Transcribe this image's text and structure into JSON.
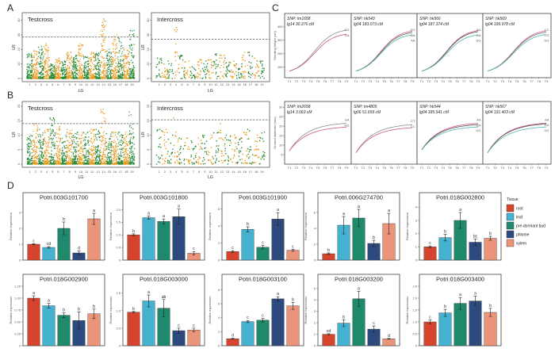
{
  "panel_letters": [
    "A",
    "B",
    "C",
    "D"
  ],
  "chart_data": {
    "manhattan": {
      "type": "scatter",
      "xlabel": "LG",
      "ylabel": "LR",
      "lg_labels": [
        "1",
        "2",
        "3",
        "4",
        "5",
        "6",
        "7",
        "8",
        "9",
        "10",
        "11",
        "12",
        "13",
        "14",
        "15",
        "16",
        "17",
        "18",
        "19"
      ],
      "colors": {
        "odd": "#2a8a3a",
        "even": "#e99a1b",
        "threshold": "#555555"
      },
      "panels": [
        {
          "row": "A",
          "title": "Testcross",
          "ylim": [
            0,
            42
          ],
          "yticks": [
            "0",
            "10",
            "20",
            "30",
            "40"
          ],
          "ytick_values": [
            0,
            10,
            20,
            30,
            40
          ],
          "threshold": 28.5,
          "lg_max": [
            17,
            19,
            22,
            24,
            10,
            14,
            12,
            18,
            16,
            24,
            15,
            18,
            18,
            41,
            20,
            30,
            28,
            20,
            33
          ]
        },
        {
          "row": "A",
          "title": "Intercross",
          "ylim": [
            0,
            42
          ],
          "yticks": [
            "0",
            "10",
            "20",
            "30",
            "40"
          ],
          "ytick_values": [
            0,
            10,
            20,
            30,
            40
          ],
          "threshold": 27,
          "lg_max": [
            14,
            10,
            12,
            35,
            16,
            12,
            8,
            13,
            12,
            13,
            17,
            16,
            14,
            12,
            10,
            18,
            18,
            14,
            12
          ]
        },
        {
          "row": "B",
          "title": "Testcross",
          "ylim": [
            0,
            20
          ],
          "yticks": [
            "0",
            "5",
            "10",
            "15",
            "20"
          ],
          "ytick_values": [
            0,
            5,
            10,
            15,
            20
          ],
          "threshold": 14,
          "lg_max": [
            10,
            14,
            12,
            12,
            16,
            13,
            10,
            12,
            11,
            11,
            11,
            12,
            12,
            19,
            11,
            11,
            11,
            11,
            18
          ]
        },
        {
          "row": "B",
          "title": "Intercross",
          "ylim": [
            0,
            20
          ],
          "yticks": [
            "0",
            "5",
            "10",
            "15",
            "20"
          ],
          "ytick_values": [
            0,
            5,
            10,
            15,
            20
          ],
          "threshold": 15.3,
          "lg_max": [
            12,
            12,
            10,
            16,
            9,
            9,
            8,
            9,
            10,
            10,
            11,
            14,
            10,
            10,
            9,
            11,
            12,
            10,
            11
          ]
        }
      ]
    },
    "growth_curves": {
      "type": "line",
      "x_labels": [
        "T1",
        "T2",
        "T3",
        "T4",
        "T5",
        "T6",
        "T7",
        "T8",
        "T9"
      ],
      "rows": [
        {
          "ylabel": "Seedling height (cm)",
          "ylim": [
            20,
            500
          ],
          "yticks": [
            100,
            200,
            300,
            400
          ],
          "shape": "sigmoid",
          "start": 70,
          "panels": [
            {
              "snp": "SNP: lm1658",
              "position": "lg14 30.376 cM",
              "genotypes": [
                {
                  "label": "GG",
                  "color": "#8c8c8c",
                  "end": 375
                },
                {
                  "label": "GA",
                  "color": "#c9587f",
                  "end": 345
                }
              ]
            },
            {
              "snp": "SNP: hk543",
              "position": "lg04 183.073 cM",
              "genotypes": [
                {
                  "label": "GG",
                  "color": "#c9587f",
                  "end": 368
                },
                {
                  "label": "GA",
                  "color": "#666666",
                  "end": 357
                },
                {
                  "label": "AA",
                  "color": "#4fb3b0",
                  "end": 340
                }
              ]
            },
            {
              "snp": "SNP: hk566",
              "position": "lg04 187.374 cM",
              "genotypes": [
                {
                  "label": "AA",
                  "color": "#c9587f",
                  "end": 372
                },
                {
                  "label": "GA",
                  "color": "#555555",
                  "end": 364
                },
                {
                  "label": "GG",
                  "color": "#4fb3b0",
                  "end": 340
                }
              ]
            },
            {
              "snp": "SNP: hk569",
              "position": "lg04 199.978 cM",
              "genotypes": [
                {
                  "label": "CC",
                  "color": "#c9587f",
                  "end": 370
                },
                {
                  "label": "CG",
                  "color": "#777777",
                  "end": 360
                },
                {
                  "label": "GG",
                  "color": "#4fb3b0",
                  "end": 343
                }
              ]
            }
          ]
        },
        {
          "ylabel": "Ground diameter (mm)",
          "ylim": [
            0,
            33
          ],
          "yticks": [
            5,
            10,
            15,
            20,
            25,
            30
          ],
          "shape": "saturating",
          "panels": [
            {
              "snp": "SNP: lm2658",
              "position": "lg14 3.063 cM",
              "start": 7,
              "genotypes": [
                {
                  "label": "GA",
                  "color": "#8c8c8c",
                  "end": 21.5
                },
                {
                  "label": "GG",
                  "color": "#c9587f",
                  "end": 19.5
                }
              ]
            },
            {
              "snp": "SNP: lm4805",
              "position": "lg06 51.659 cM",
              "start": 6,
              "genotypes": [
                {
                  "label": "CT",
                  "color": "#8c8c8c",
                  "end": 20.8
                },
                {
                  "label": "CC",
                  "color": "#c9587f",
                  "end": 19.2
                }
              ]
            },
            {
              "snp": "SNP: hk544",
              "position": "lg04 185.541 cM",
              "start": 7.5,
              "genotypes": [
                {
                  "label": "AA",
                  "color": "#c9587f",
                  "end": 21.5
                },
                {
                  "label": "GA",
                  "color": "#555555",
                  "end": 20.8
                },
                {
                  "label": "GG",
                  "color": "#4fb3b0",
                  "end": 19.6
                }
              ]
            },
            {
              "snp": "SNP: hk567",
              "position": "lg04 191.403 cM",
              "start": 6,
              "genotypes": [
                {
                  "label": "AA",
                  "color": "#c9587f",
                  "end": 21.6
                },
                {
                  "label": "GA",
                  "color": "#555555",
                  "end": 21.2
                },
                {
                  "label": "GG",
                  "color": "#4fb3b0",
                  "end": 19.6
                }
              ]
            }
          ]
        }
      ]
    },
    "expression": {
      "type": "bar",
      "ylabel": "Relative expression",
      "legend_title": "Tissue",
      "tissues": [
        {
          "name": "root",
          "color": "#d7442e"
        },
        {
          "name": "leaf",
          "color": "#45b2cf"
        },
        {
          "name": "pre-dormant bud",
          "color": "#1f8a6b"
        },
        {
          "name": "phlome",
          "color": "#2d4a7f"
        },
        {
          "name": "xylem",
          "color": "#eb9479"
        }
      ],
      "genes": [
        {
          "title": "Potri.003G101700",
          "ylim": [
            0,
            3.5
          ],
          "yticks": [
            "0",
            "1",
            "2",
            "3"
          ],
          "ytick_values": [
            0,
            1,
            2,
            3
          ],
          "values": [
            1.0,
            0.8,
            2.0,
            0.45,
            2.6
          ],
          "errors": [
            0.03,
            0.05,
            0.4,
            0.12,
            0.35
          ],
          "letters": [
            "c",
            "cd",
            "b",
            "d",
            "a"
          ]
        },
        {
          "title": "Potri.003G101800",
          "ylim": [
            0,
            2.2
          ],
          "yticks": [
            "0",
            "0.5",
            "1.0",
            "1.5",
            "2.0"
          ],
          "ytick_values": [
            0,
            0.5,
            1,
            1.5,
            2
          ],
          "values": [
            1.0,
            1.68,
            1.53,
            1.72,
            0.27
          ],
          "errors": [
            0.04,
            0.06,
            0.1,
            0.3,
            0.07
          ],
          "letters": [
            "b",
            "a",
            "a",
            "a",
            "c"
          ]
        },
        {
          "title": "Potri.003G101900",
          "ylim": [
            0,
            6.5
          ],
          "yticks": [
            "0",
            "2",
            "4",
            "6"
          ],
          "ytick_values": [
            0,
            2,
            4,
            6
          ],
          "values": [
            1.0,
            3.6,
            1.5,
            4.8,
            1.15
          ],
          "errors": [
            0.1,
            0.3,
            0.2,
            0.75,
            0.12
          ],
          "letters": [
            "c",
            "b",
            "c",
            "a",
            "c"
          ]
        },
        {
          "title": "Potri.006G274700",
          "ylim": [
            0,
            7
          ],
          "yticks": [
            "0",
            "2",
            "4",
            "6"
          ],
          "ytick_values": [
            0,
            2,
            4,
            6
          ],
          "values": [
            0.8,
            4.4,
            5.3,
            2.1,
            4.6
          ],
          "errors": [
            0.1,
            1.1,
            1.1,
            0.4,
            1.3
          ],
          "letters": [
            "b",
            "a",
            "a",
            "b",
            "a"
          ]
        },
        {
          "title": "Potri.018G002800",
          "ylim": [
            0,
            4.2
          ],
          "yticks": [
            "0",
            "1",
            "2",
            "3",
            "4"
          ],
          "ytick_values": [
            0,
            1,
            2,
            3,
            4
          ],
          "values": [
            1.0,
            1.7,
            3.0,
            1.35,
            1.65
          ],
          "errors": [
            0.07,
            0.25,
            0.6,
            0.25,
            0.15
          ],
          "letters": [
            "c",
            "b",
            "a",
            "bc",
            "b"
          ]
        },
        {
          "title": "Potri.018G002900",
          "ylim": [
            0,
            1.25
          ],
          "yticks": [
            "0",
            "0.25",
            "0.50",
            "0.75",
            "1.00",
            "1.25"
          ],
          "ytick_values": [
            0,
            0.25,
            0.5,
            0.75,
            1,
            1.25
          ],
          "values": [
            1.0,
            0.84,
            0.64,
            0.53,
            0.67
          ],
          "errors": [
            0.05,
            0.05,
            0.05,
            0.18,
            0.1
          ],
          "letters": [
            "a",
            "a",
            "b",
            "b",
            "b"
          ]
        },
        {
          "title": "Potri.018G003000",
          "ylim": [
            0,
            1.7
          ],
          "yticks": [
            "0",
            "0.5",
            "1.0",
            "1.5"
          ],
          "ytick_values": [
            0,
            0.5,
            1,
            1.5
          ],
          "values": [
            0.96,
            1.28,
            1.07,
            0.43,
            0.45
          ],
          "errors": [
            0.02,
            0.17,
            0.25,
            0.07,
            0.05
          ],
          "letters": [
            "b",
            "a",
            "ab",
            "c",
            "c"
          ]
        },
        {
          "title": "Potri.018G003100",
          "ylim": [
            0,
            8.5
          ],
          "yticks": [
            "0",
            "2",
            "4",
            "6",
            "8"
          ],
          "ytick_values": [
            0,
            2,
            4,
            6,
            8
          ],
          "values": [
            1.0,
            3.45,
            3.65,
            6.7,
            5.7
          ],
          "errors": [
            0.05,
            0.15,
            0.25,
            0.3,
            0.5
          ],
          "letters": [
            "d",
            "c",
            "c",
            "a",
            "b"
          ]
        },
        {
          "title": "Potri.018G003200",
          "ylim": [
            0,
            5.2
          ],
          "yticks": [
            "0",
            "1",
            "2",
            "3",
            "4",
            "5"
          ],
          "ytick_values": [
            0,
            1,
            2,
            3,
            4,
            5
          ],
          "values": [
            1.0,
            1.97,
            4.1,
            1.45,
            0.6
          ],
          "errors": [
            0.05,
            0.3,
            0.65,
            0.28,
            0.03
          ],
          "letters": [
            "cd",
            "b",
            "a",
            "c",
            "d"
          ]
        },
        {
          "title": "Potri.018G003400",
          "ylim": [
            0,
            2.5
          ],
          "yticks": [
            "0",
            "0.5",
            "1.0",
            "1.5",
            "2.0",
            "2.5"
          ],
          "ytick_values": [
            0,
            0.5,
            1,
            1.5,
            2,
            2.5
          ],
          "values": [
            1.0,
            1.38,
            1.78,
            1.88,
            1.4
          ],
          "errors": [
            0.08,
            0.15,
            0.25,
            0.2,
            0.17
          ],
          "letters": [
            "c",
            "b",
            "a",
            "a",
            "b"
          ]
        }
      ]
    }
  }
}
